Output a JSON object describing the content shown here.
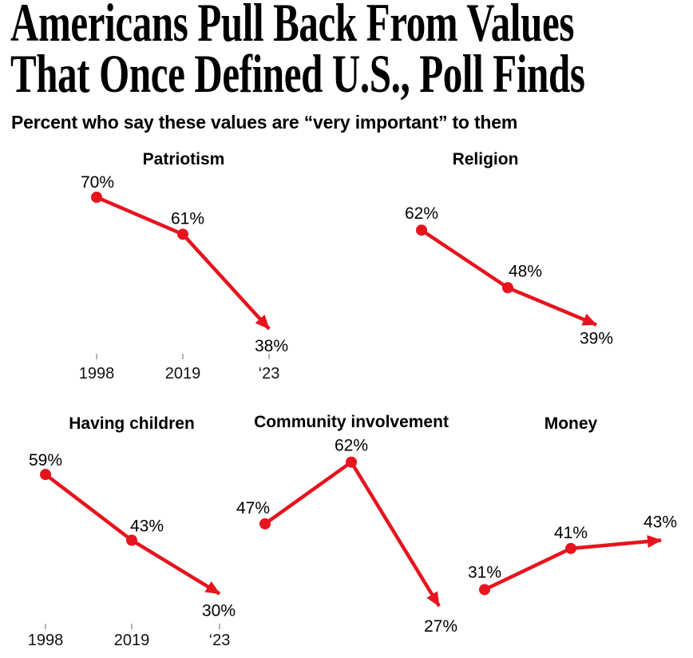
{
  "header": {
    "headline_lines": [
      "Americans Pull Back From Values",
      "That Once Defined U.S., Poll Finds"
    ],
    "subtitle": "Percent who say these values are “very important” to them"
  },
  "colors": {
    "line": "#e6141e",
    "text": "#000000",
    "tick": "#9a9a9a"
  },
  "chart_data": {
    "type": "line",
    "title": "Americans Pull Back From Values That Once Defined U.S., Poll Finds",
    "subtitle": "Percent who say these values are “very important” to them",
    "unit": "percent",
    "x": [
      "1998",
      "2019",
      "‘23"
    ],
    "x_axis_shown_on": [
      "Patriotism",
      "Having children"
    ],
    "grid": false,
    "legend": "none",
    "marker_style": "dot on first two points, red arrowhead on final point",
    "series": [
      {
        "name": "Patriotism",
        "values": [
          70,
          61,
          38
        ],
        "point_labels": [
          "70%",
          "61%",
          "38%"
        ]
      },
      {
        "name": "Religion",
        "values": [
          62,
          48,
          39
        ],
        "point_labels": [
          "62%",
          "48%",
          "39%"
        ]
      },
      {
        "name": "Having children",
        "values": [
          59,
          43,
          30
        ],
        "point_labels": [
          "59%",
          "43%",
          "30%"
        ]
      },
      {
        "name": "Community involvement",
        "values": [
          47,
          62,
          27
        ],
        "point_labels": [
          "47%",
          "62%",
          "27%"
        ]
      },
      {
        "name": "Money",
        "values": [
          31,
          41,
          43
        ],
        "point_labels": [
          "31%",
          "41%",
          "43%"
        ]
      }
    ]
  }
}
